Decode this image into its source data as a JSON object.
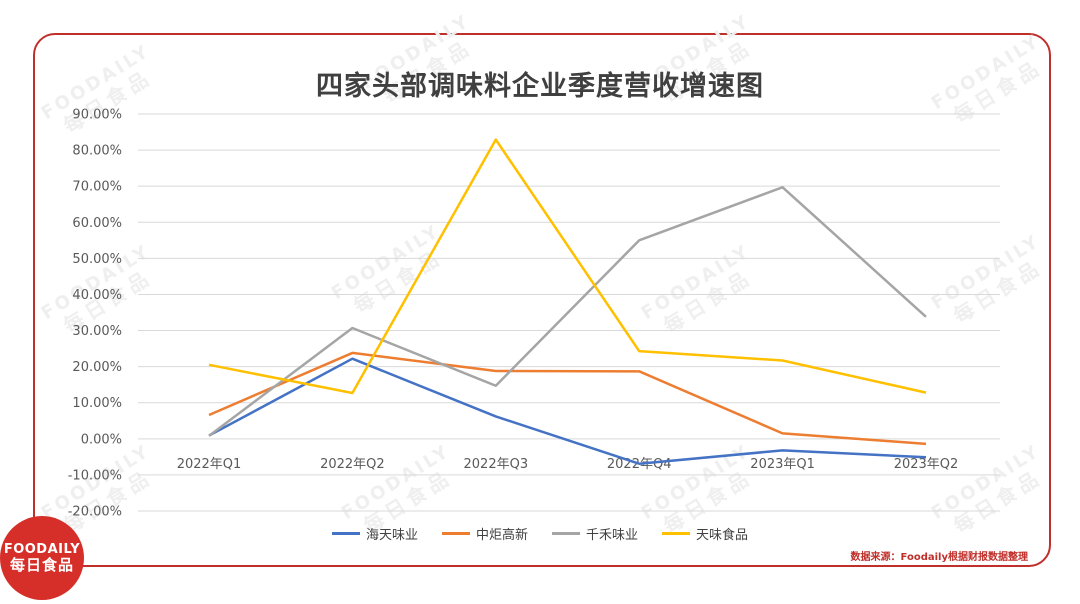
{
  "chart_data": {
    "type": "line",
    "title": "四家头部调味料企业季度营收增速图",
    "categories": [
      "2022年Q1",
      "2022年Q2",
      "2022年Q3",
      "2022年Q4",
      "2023年Q1",
      "2023年Q2"
    ],
    "ylim": [
      -0.2,
      0.9
    ],
    "yticks": [
      "-20.00%",
      "-10.00%",
      "0.00%",
      "10.00%",
      "20.00%",
      "30.00%",
      "40.00%",
      "50.00%",
      "60.00%",
      "70.00%",
      "80.00%",
      "90.00%"
    ],
    "grid": true,
    "legend_position": "bottom",
    "series": [
      {
        "name": "海天味业",
        "color": "#4472c4",
        "values": [
          0.009,
          0.222,
          0.062,
          -0.069,
          -0.032,
          -0.051
        ]
      },
      {
        "name": "中炬高新",
        "color": "#ed7d31",
        "values": [
          0.066,
          0.238,
          0.188,
          0.187,
          0.015,
          -0.014
        ]
      },
      {
        "name": "千禾味业",
        "color": "#a5a5a5",
        "values": [
          0.008,
          0.307,
          0.147,
          0.55,
          0.697,
          0.338
        ]
      },
      {
        "name": "天味食品",
        "color": "#ffc000",
        "values": [
          0.205,
          0.127,
          0.829,
          0.243,
          0.217,
          0.128
        ]
      }
    ]
  },
  "source_note": "数据来源：Foodaily根据财报数据整理",
  "logo": {
    "line1": "FOODAILY",
    "line2": "每日食品"
  },
  "watermark": {
    "line1": "FOODAILY",
    "line2": "每日食品"
  }
}
